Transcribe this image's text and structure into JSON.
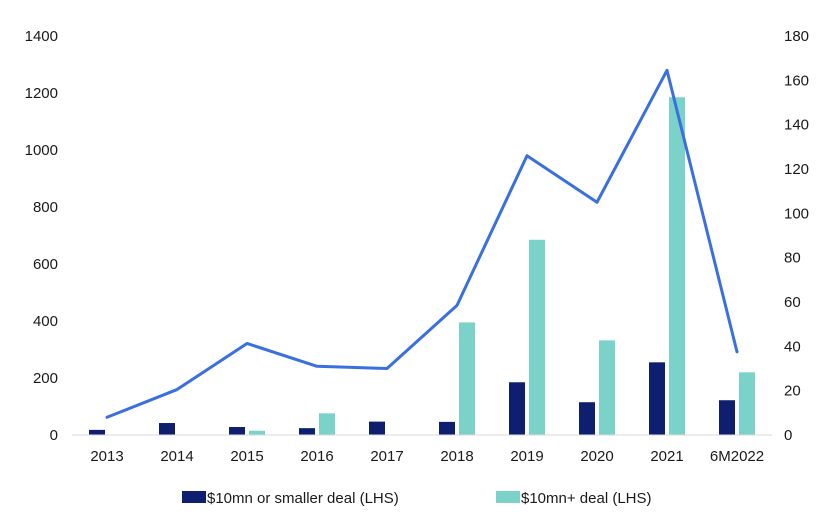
{
  "chart_data": {
    "type": "bar",
    "categories": [
      "2013",
      "2014",
      "2015",
      "2016",
      "2017",
      "2018",
      "2019",
      "2020",
      "2021",
      "6M2022"
    ],
    "series": [
      {
        "name": "$10mn or smaller deal (LHS)",
        "kind": "bar",
        "axis": "left",
        "color": "#0d1f6e",
        "values": [
          18,
          42,
          28,
          24,
          47,
          46,
          185,
          115,
          255,
          122
        ]
      },
      {
        "name": "$10mn+ deal (LHS)",
        "kind": "bar",
        "axis": "left",
        "color": "#7ad2c8",
        "values": [
          0,
          0,
          15,
          76,
          0,
          395,
          685,
          332,
          1185,
          220
        ]
      },
      {
        "name": "",
        "kind": "line",
        "axis": "right",
        "color": "#3a6fe0",
        "values": [
          8,
          20.5,
          41.3,
          31,
          30,
          58.5,
          126,
          105,
          164.5,
          37.5
        ]
      }
    ],
    "y_left": {
      "min": 0,
      "max": 1400,
      "ticks": [
        0,
        200,
        400,
        600,
        800,
        1000,
        1200,
        1400
      ]
    },
    "y_right": {
      "min": 0,
      "max": 180,
      "ticks": [
        0,
        20,
        40,
        60,
        80,
        100,
        120,
        140,
        160,
        180
      ]
    },
    "grid": false,
    "legend_position": "bottom"
  }
}
